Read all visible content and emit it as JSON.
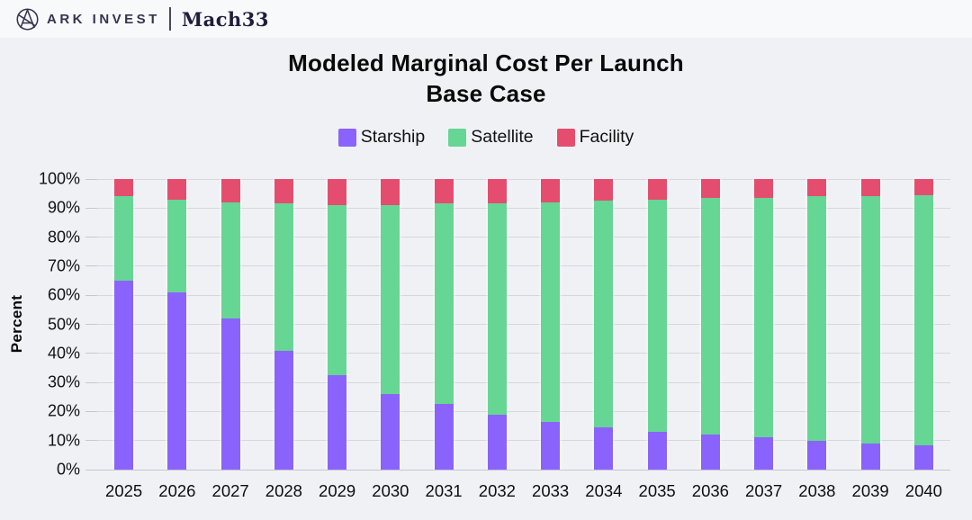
{
  "header": {
    "brand_primary": "ARK INVEST",
    "brand_secondary": "Mach33"
  },
  "title": {
    "line1": "Modeled Marginal Cost Per Launch",
    "line2": "Base Case"
  },
  "chart_data": {
    "type": "bar",
    "stacked": true,
    "stack_total": 100,
    "title": "Modeled Marginal Cost Per Launch",
    "subtitle": "Base Case",
    "ylabel": "Percent",
    "xlabel": "",
    "ylim": [
      0,
      100
    ],
    "ytick_step": 10,
    "ytick_suffix": "%",
    "grid": "horizontal",
    "legend_position": "top-center",
    "categories": [
      "2025",
      "2026",
      "2027",
      "2028",
      "2029",
      "2030",
      "2031",
      "2032",
      "2033",
      "2034",
      "2035",
      "2036",
      "2037",
      "2038",
      "2039",
      "2040"
    ],
    "series": [
      {
        "name": "Starship",
        "color": "#8A63FC",
        "values": [
          65,
          61,
          52,
          41,
          32.5,
          26,
          22.5,
          19,
          16.5,
          14.5,
          13,
          12,
          11,
          10,
          9,
          8.5
        ]
      },
      {
        "name": "Satellite",
        "color": "#66D695",
        "values": [
          29,
          32,
          40,
          50.5,
          58.5,
          65,
          69,
          72.5,
          75.5,
          78,
          80,
          81.5,
          82.5,
          84,
          85,
          86
        ]
      },
      {
        "name": "Facility",
        "color": "#E54D6F",
        "values": [
          6,
          7,
          8,
          8.5,
          9,
          9,
          8.5,
          8.5,
          8,
          7.5,
          7,
          6.5,
          6.5,
          6,
          6,
          5.5
        ]
      }
    ]
  },
  "colors": {
    "page_background": "#F0F1F5",
    "header_background": "#F8F9FB",
    "gridline": "#D6D7DC",
    "brand_navy": "#34344F",
    "text": "#0A0A0C"
  }
}
